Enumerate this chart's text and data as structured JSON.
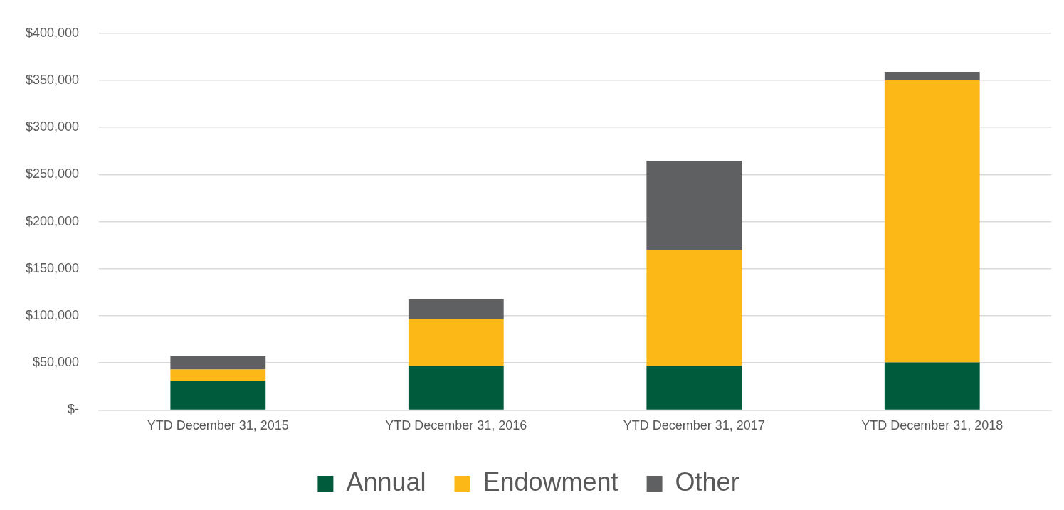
{
  "chart_data": {
    "type": "bar",
    "stacked": true,
    "categories": [
      "YTD December 31, 2015",
      "YTD December 31, 2016",
      "YTD December 31, 2017",
      "YTD December 31, 2018"
    ],
    "series": [
      {
        "name": "Annual",
        "color": "#005a3c",
        "values": [
          31000,
          47000,
          47000,
          50500
        ]
      },
      {
        "name": "Endowment",
        "color": "#fbb817",
        "values": [
          12000,
          49500,
          123000,
          299500
        ]
      },
      {
        "name": "Other",
        "color": "#5f6062",
        "values": [
          14500,
          21000,
          94500,
          9000
        ]
      }
    ],
    "ylim": [
      0,
      400000
    ],
    "yticks": [
      {
        "value": 0,
        "label": "$-"
      },
      {
        "value": 50000,
        "label": "$50,000"
      },
      {
        "value": 100000,
        "label": "$100,000"
      },
      {
        "value": 150000,
        "label": "$150,000"
      },
      {
        "value": 200000,
        "label": "$200,000"
      },
      {
        "value": 250000,
        "label": "$250,000"
      },
      {
        "value": 300000,
        "label": "$300,000"
      },
      {
        "value": 350000,
        "label": "$350,000"
      },
      {
        "value": 400000,
        "label": "$400,000"
      }
    ],
    "grid": "y",
    "legend": "bottom"
  }
}
